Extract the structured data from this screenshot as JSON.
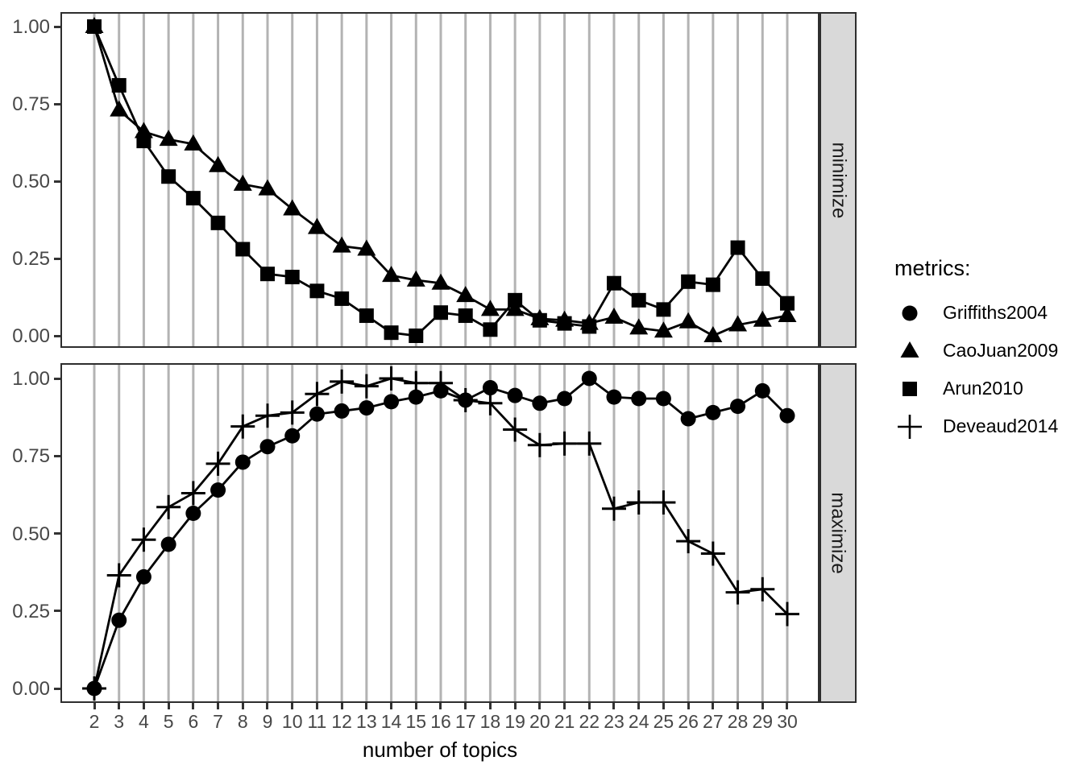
{
  "figure": {
    "axes": {
      "y_tick_labels": [
        "0.00",
        "0.25",
        "0.50",
        "0.75",
        "1.00"
      ],
      "x_axis_title": "number of topics"
    },
    "facets": {
      "top_label": "minimize",
      "bottom_label": "maximize"
    },
    "legend": {
      "title": "metrics:",
      "entries": [
        {
          "label": "Griffiths2004",
          "marker": "circle"
        },
        {
          "label": "CaoJuan2009",
          "marker": "triangle"
        },
        {
          "label": "Arun2010",
          "marker": "square"
        },
        {
          "label": "Deveaud2014",
          "marker": "plus"
        }
      ]
    },
    "colors": {
      "foreground": "#000000",
      "gridline": "#B3B3B3",
      "strip_fill": "#D9D9D9",
      "panel_border": "#2e2e2e",
      "tick_label": "#474747"
    }
  },
  "chart_data": {
    "type": "line",
    "title": "",
    "xlabel": "number of topics",
    "ylabel": "",
    "ylim": [
      0,
      1
    ],
    "yticks": [
      0,
      0.25,
      0.5,
      0.75,
      1
    ],
    "grid": "vertical-only",
    "legend_position": "right",
    "legend_title": "metrics:",
    "x": [
      2,
      3,
      4,
      5,
      6,
      7,
      8,
      9,
      10,
      11,
      12,
      13,
      14,
      15,
      16,
      17,
      18,
      19,
      20,
      21,
      22,
      23,
      24,
      25,
      26,
      27,
      28,
      29,
      30
    ],
    "facets": [
      {
        "label": "minimize",
        "series": [
          {
            "name": "CaoJuan2009",
            "marker": "triangle",
            "values": [
              1.0,
              0.73,
              0.66,
              0.635,
              0.62,
              0.55,
              0.49,
              0.475,
              0.41,
              0.35,
              0.29,
              0.28,
              0.195,
              0.18,
              0.17,
              0.13,
              0.085,
              0.085,
              0.055,
              0.05,
              0.04,
              0.06,
              0.025,
              0.015,
              0.045,
              0.0,
              0.035,
              0.05,
              0.065
            ]
          },
          {
            "name": "Arun2010",
            "marker": "square",
            "values": [
              1.0,
              0.81,
              0.63,
              0.515,
              0.445,
              0.365,
              0.28,
              0.2,
              0.19,
              0.145,
              0.12,
              0.065,
              0.01,
              0.0,
              0.075,
              0.065,
              0.02,
              0.115,
              0.05,
              0.04,
              0.03,
              0.17,
              0.115,
              0.085,
              0.175,
              0.165,
              0.285,
              0.185,
              0.105
            ]
          }
        ]
      },
      {
        "label": "maximize",
        "series": [
          {
            "name": "Griffiths2004",
            "marker": "circle",
            "values": [
              0.0,
              0.22,
              0.36,
              0.465,
              0.565,
              0.64,
              0.73,
              0.78,
              0.815,
              0.885,
              0.895,
              0.905,
              0.925,
              0.94,
              0.96,
              0.93,
              0.97,
              0.945,
              0.92,
              0.935,
              1.0,
              0.94,
              0.935,
              0.935,
              0.87,
              0.89,
              0.91,
              0.96,
              0.88
            ]
          },
          {
            "name": "Deveaud2014",
            "marker": "plus",
            "values": [
              0.0,
              0.365,
              0.48,
              0.585,
              0.63,
              0.725,
              0.845,
              0.88,
              0.89,
              0.95,
              0.99,
              0.975,
              1.0,
              0.985,
              0.985,
              0.93,
              0.92,
              0.835,
              0.785,
              0.79,
              0.79,
              0.58,
              0.6,
              0.6,
              0.475,
              0.435,
              0.31,
              0.32,
              0.24
            ]
          }
        ]
      }
    ]
  }
}
